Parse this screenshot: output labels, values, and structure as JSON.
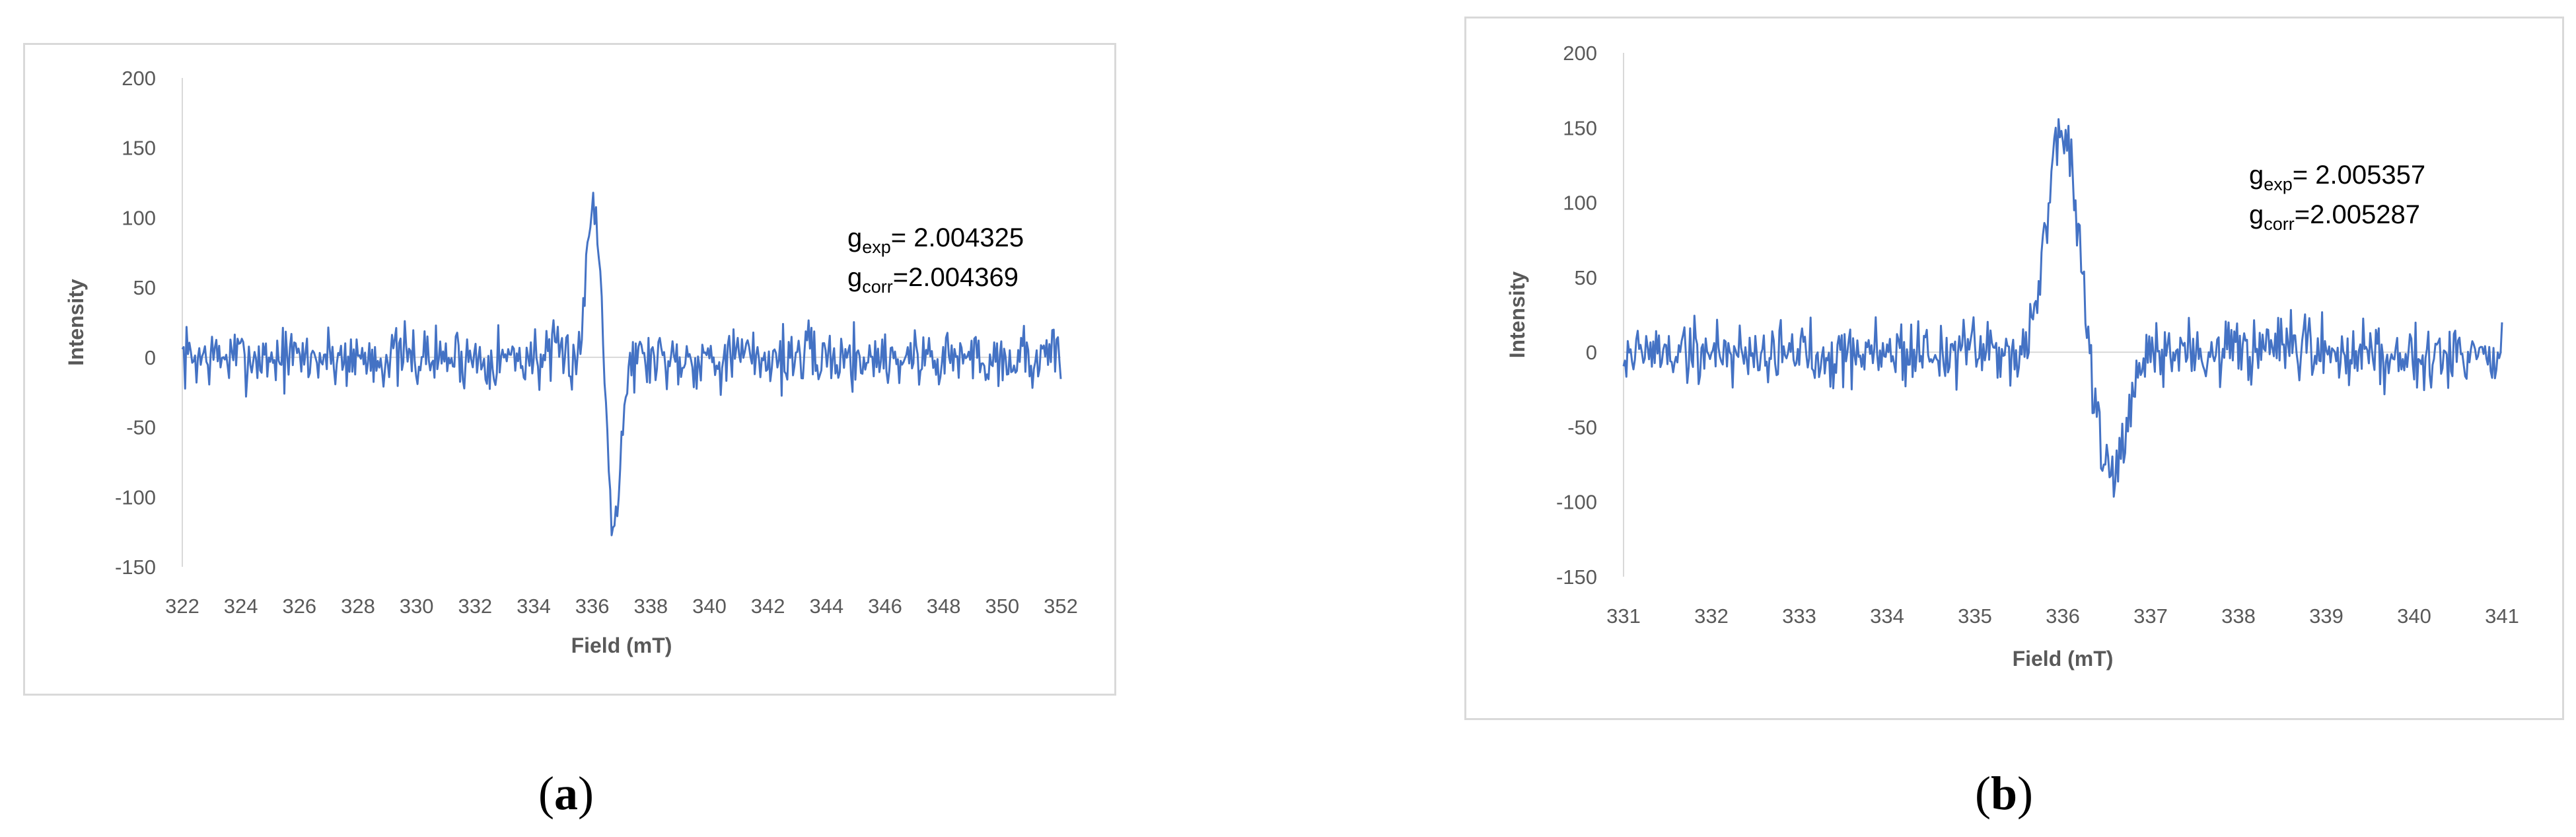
{
  "chart_data": [
    {
      "panel": "a",
      "type": "line",
      "xlabel": "Field (mT)",
      "ylabel": "Intensity",
      "xlim": [
        322,
        352
      ],
      "ylim": [
        -150,
        200
      ],
      "xticks": [
        "322",
        "324",
        "326",
        "328",
        "330",
        "332",
        "334",
        "336",
        "338",
        "340",
        "342",
        "344",
        "346",
        "348",
        "350",
        "352"
      ],
      "yticks": [
        "200",
        "150",
        "100",
        "50",
        "0",
        "-50",
        "-100",
        "-150"
      ],
      "grid": false,
      "color": "#4472c4",
      "noise_amplitude": 11,
      "signal": {
        "center": 336.4,
        "peak_x": 336.05,
        "peak_y": 113,
        "trough_x": 336.75,
        "trough_y": -113,
        "width": 0.32
      },
      "annotation": {
        "g_exp_main": "g",
        "g_exp_sub": "exp",
        "g_exp_value": "= 2.004325",
        "g_corr_main": "g",
        "g_corr_sub": "corr",
        "g_corr_value": "=2.004369"
      },
      "caption_letter": "a"
    },
    {
      "panel": "b",
      "type": "line",
      "xlabel": "Field (mT)",
      "ylabel": "Intensity",
      "xlim": [
        331,
        341
      ],
      "ylim": [
        -150,
        200
      ],
      "xticks": [
        "331",
        "332",
        "333",
        "334",
        "335",
        "336",
        "337",
        "338",
        "339",
        "340",
        "341"
      ],
      "yticks": [
        "200",
        "150",
        "100",
        "50",
        "0",
        "-50",
        "-100",
        "-150"
      ],
      "grid": false,
      "color": "#4472c4",
      "noise_amplitude": 11,
      "signal": {
        "center": 336.15,
        "peak_x": 336.0,
        "peak_y": 148,
        "trough_x": 336.55,
        "trough_y": -88,
        "width": 0.25
      },
      "annotation": {
        "g_exp_main": "g",
        "g_exp_sub": "exp",
        "g_exp_value": "= 2.005357",
        "g_corr_main": "g",
        "g_corr_sub": "corr",
        "g_corr_value": "=2.005287"
      },
      "caption_letter": "b"
    }
  ]
}
